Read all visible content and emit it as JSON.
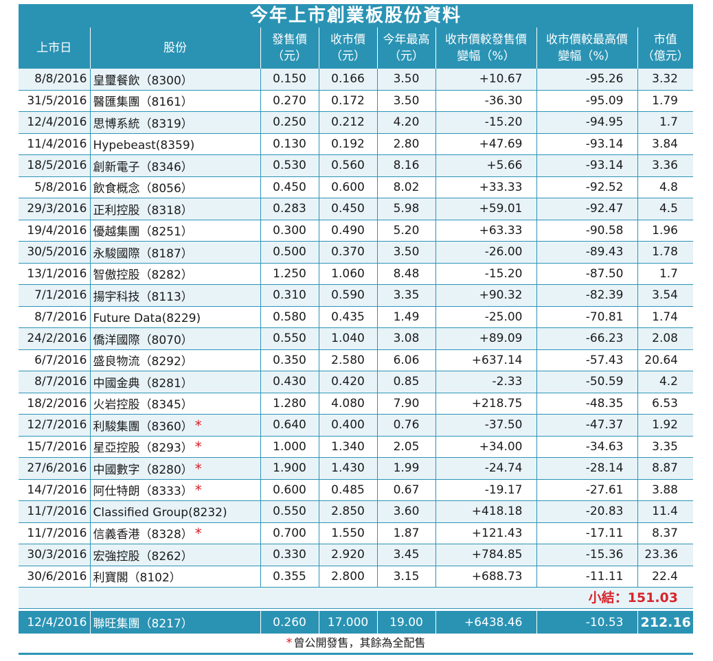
{
  "title": "今年上市創業板股份資料",
  "headers": {
    "date": "上市日",
    "stock": "股份",
    "ipo_price": [
      "發售價",
      "（元）"
    ],
    "close_price": [
      "收市價",
      "（元）"
    ],
    "year_high": [
      "今年最高",
      "（元）"
    ],
    "change_vs_ipo": [
      "收市價較發售價",
      "變幅（%）"
    ],
    "change_vs_high": [
      "收市價較最高價",
      "變幅（%）"
    ],
    "market_cap": [
      "市值",
      "（億元）"
    ]
  },
  "rows": [
    {
      "date": "8/8/2016",
      "stock": "皇璽餐飲（8300）",
      "ipo": "0.150",
      "close": "0.166",
      "high": "3.50",
      "chg_ipo": "+10.67",
      "chg_high": "-95.26",
      "cap": "3.32",
      "star": ""
    },
    {
      "date": "31/5/2016",
      "stock": "醫匯集團（8161）",
      "ipo": "0.270",
      "close": "0.172",
      "high": "3.50",
      "chg_ipo": "-36.30",
      "chg_high": "-95.09",
      "cap": "1.79",
      "star": ""
    },
    {
      "date": "12/4/2016",
      "stock": "思博系統（8319）",
      "ipo": "0.250",
      "close": "0.212",
      "high": "4.20",
      "chg_ipo": "-15.20",
      "chg_high": "-94.95",
      "cap": "1.7",
      "star": ""
    },
    {
      "date": "11/4/2016",
      "stock": "Hypebeast(8359)",
      "ipo": "0.130",
      "close": "0.192",
      "high": "2.80",
      "chg_ipo": "+47.69",
      "chg_high": "-93.14",
      "cap": "3.84",
      "star": ""
    },
    {
      "date": "18/5/2016",
      "stock": "創新電子（8346）",
      "ipo": "0.530",
      "close": "0.560",
      "high": "8.16",
      "chg_ipo": "+5.66",
      "chg_high": "-93.14",
      "cap": "3.36",
      "star": ""
    },
    {
      "date": "5/8/2016",
      "stock": "飲食概念（8056）",
      "ipo": "0.450",
      "close": "0.600",
      "high": "8.02",
      "chg_ipo": "+33.33",
      "chg_high": "-92.52",
      "cap": "4.8",
      "star": ""
    },
    {
      "date": "29/3/2016",
      "stock": "正利控股（8318）",
      "ipo": "0.283",
      "close": "0.450",
      "high": "5.98",
      "chg_ipo": "+59.01",
      "chg_high": "-92.47",
      "cap": "4.5",
      "star": ""
    },
    {
      "date": "19/4/2016",
      "stock": "優越集團（8251）",
      "ipo": "0.300",
      "close": "0.490",
      "high": "5.20",
      "chg_ipo": "+63.33",
      "chg_high": "-90.58",
      "cap": "1.96",
      "star": ""
    },
    {
      "date": "30/5/2016",
      "stock": "永駿國際（8187）",
      "ipo": "0.500",
      "close": "0.370",
      "high": "3.50",
      "chg_ipo": "-26.00",
      "chg_high": "-89.43",
      "cap": "1.78",
      "star": ""
    },
    {
      "date": "13/1/2016",
      "stock": "智傲控股（8282）",
      "ipo": "1.250",
      "close": "1.060",
      "high": "8.48",
      "chg_ipo": "-15.20",
      "chg_high": "-87.50",
      "cap": "1.7",
      "star": ""
    },
    {
      "date": "7/1/2016",
      "stock": "揚宇科技（8113）",
      "ipo": "0.310",
      "close": "0.590",
      "high": "3.35",
      "chg_ipo": "+90.32",
      "chg_high": "-82.39",
      "cap": "3.54",
      "star": ""
    },
    {
      "date": "8/7/2016",
      "stock": "Future Data(8229)",
      "ipo": "0.580",
      "close": "0.435",
      "high": "1.49",
      "chg_ipo": "-25.00",
      "chg_high": "-70.81",
      "cap": "1.74",
      "star": ""
    },
    {
      "date": "24/2/2016",
      "stock": "僑洋國際（8070）",
      "ipo": "0.550",
      "close": "1.040",
      "high": "3.08",
      "chg_ipo": "+89.09",
      "chg_high": "-66.23",
      "cap": "2.08",
      "star": ""
    },
    {
      "date": "6/7/2016",
      "stock": "盛良物流（8292）",
      "ipo": "0.350",
      "close": "2.580",
      "high": "6.06",
      "chg_ipo": "+637.14",
      "chg_high": "-57.43",
      "cap": "20.64",
      "star": ""
    },
    {
      "date": "8/7/2016",
      "stock": "中國金典（8281）",
      "ipo": "0.430",
      "close": "0.420",
      "high": "0.85",
      "chg_ipo": "-2.33",
      "chg_high": "-50.59",
      "cap": "4.2",
      "star": ""
    },
    {
      "date": "18/2/2016",
      "stock": "火岩控股（8345）",
      "ipo": "1.280",
      "close": "4.080",
      "high": "7.90",
      "chg_ipo": "+218.75",
      "chg_high": "-48.35",
      "cap": "6.53",
      "star": ""
    },
    {
      "date": "12/7/2016",
      "stock": "利駿集團（8360）",
      "ipo": "0.640",
      "close": "0.400",
      "high": "0.76",
      "chg_ipo": "-37.50",
      "chg_high": "-47.37",
      "cap": "1.92",
      "star": "*"
    },
    {
      "date": "15/7/2016",
      "stock": "星亞控股（8293）",
      "ipo": "1.000",
      "close": "1.340",
      "high": "2.05",
      "chg_ipo": "+34.00",
      "chg_high": "-34.63",
      "cap": "3.35",
      "star": "*"
    },
    {
      "date": "27/6/2016",
      "stock": "中國數字（8280）",
      "ipo": "1.900",
      "close": "1.430",
      "high": "1.99",
      "chg_ipo": "-24.74",
      "chg_high": "-28.14",
      "cap": "8.87",
      "star": "*"
    },
    {
      "date": "14/7/2016",
      "stock": "阿仕特朗（8333）",
      "ipo": "0.600",
      "close": "0.485",
      "high": "0.67",
      "chg_ipo": "-19.17",
      "chg_high": "-27.61",
      "cap": "3.88",
      "star": "*"
    },
    {
      "date": "11/7/2016",
      "stock": "Classified Group(8232)",
      "ipo": "0.550",
      "close": "2.850",
      "high": "3.60",
      "chg_ipo": "+418.18",
      "chg_high": "-20.83",
      "cap": "11.4",
      "star": ""
    },
    {
      "date": "11/7/2016",
      "stock": "信義香港（8328）",
      "ipo": "0.700",
      "close": "1.550",
      "high": "1.87",
      "chg_ipo": "+121.43",
      "chg_high": "-17.11",
      "cap": "8.37",
      "star": "*"
    },
    {
      "date": "30/3/2016",
      "stock": "宏強控股（8262）",
      "ipo": "0.330",
      "close": "2.920",
      "high": "3.45",
      "chg_ipo": "+784.85",
      "chg_high": "-15.36",
      "cap": "23.36",
      "star": ""
    },
    {
      "date": "30/6/2016",
      "stock": "利寶閣（8102）",
      "ipo": "0.355",
      "close": "2.800",
      "high": "3.15",
      "chg_ipo": "+688.73",
      "chg_high": "-11.11",
      "cap": "22.4",
      "star": ""
    }
  ],
  "subtotal": {
    "label": "小結：",
    "value": "151.03"
  },
  "final_row": {
    "date": "12/4/2016",
    "stock": "聯旺集團（8217）",
    "ipo": "0.260",
    "close": "17.000",
    "high": "19.00",
    "chg_ipo": "+6438.46",
    "chg_high": "-10.53",
    "cap": "212.16"
  },
  "footnote": {
    "star": "*",
    "text": "曾公開發售，其餘為全配售"
  },
  "colors": {
    "header_bg": "#2a93b4",
    "stripe": "#e8f3f8",
    "star": "#d8232a"
  }
}
